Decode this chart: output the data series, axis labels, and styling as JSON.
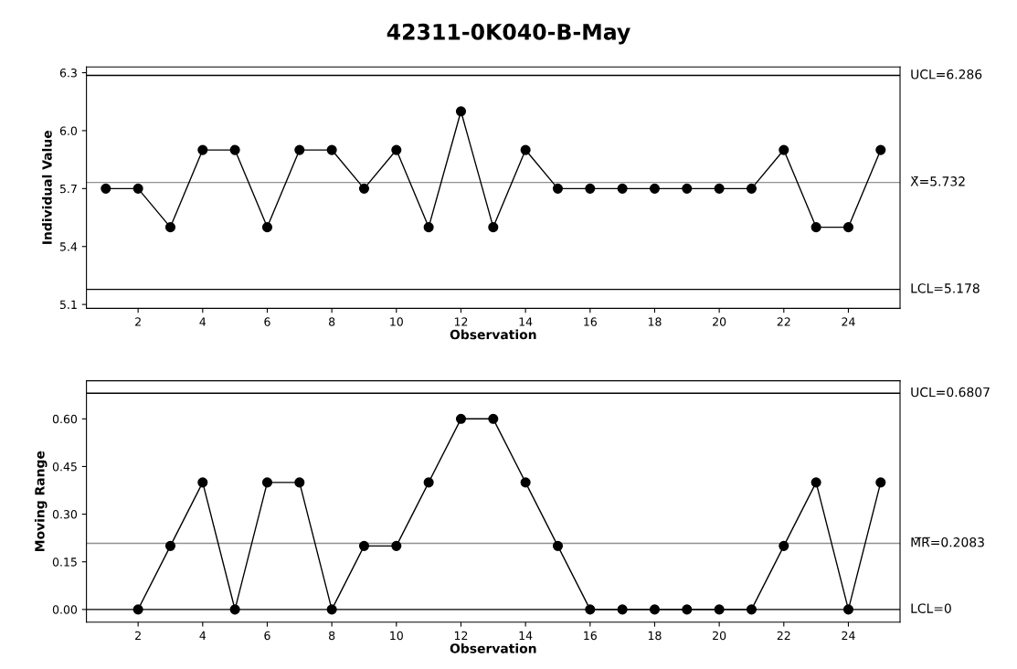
{
  "chart_data": [
    {
      "type": "line",
      "title": "42311-0K040-B-May",
      "xlabel": "Observation",
      "ylabel": "Individual Value",
      "x": [
        1,
        2,
        3,
        4,
        5,
        6,
        7,
        8,
        9,
        10,
        11,
        12,
        13,
        14,
        15,
        16,
        17,
        18,
        19,
        20,
        21,
        22,
        23,
        24,
        25
      ],
      "series": [
        {
          "color": "#000000",
          "values": [
            5.7,
            5.7,
            5.5,
            5.9,
            5.9,
            5.5,
            5.9,
            5.9,
            5.7,
            5.9,
            5.5,
            6.1,
            5.5,
            5.9,
            5.7,
            5.7,
            5.7,
            5.7,
            5.7,
            5.7,
            5.7,
            5.9,
            5.5,
            5.5,
            5.9
          ]
        }
      ],
      "xlim": [
        0.4,
        25.6
      ],
      "xticks": [
        2,
        4,
        6,
        8,
        10,
        12,
        14,
        16,
        18,
        20,
        22,
        24
      ],
      "ylim": [
        5.08,
        6.33
      ],
      "yticks": [
        5.1,
        5.4,
        5.7,
        {
          "value": 6.0,
          "label": "6.0"
        },
        6.3
      ],
      "ref_lines": [
        {
          "axis": "y",
          "value": 6.286,
          "label": "UCL=6.286",
          "color": "#000000"
        },
        {
          "axis": "y",
          "value": 5.732,
          "label": "X̄=5.732",
          "color": "#909090"
        },
        {
          "axis": "y",
          "value": 5.178,
          "label": "LCL=5.178",
          "color": "#000000"
        }
      ],
      "marker": "circle",
      "line_style": "solid",
      "grid": false,
      "legend": false
    },
    {
      "type": "line",
      "xlabel": "Observation",
      "ylabel": "Moving Range",
      "series": [
        {
          "color": "#000000",
          "x": [
            2,
            3,
            4,
            5,
            6,
            7,
            8,
            9,
            10,
            11,
            12,
            13,
            14,
            15,
            16,
            17,
            18,
            19,
            20,
            21,
            22,
            23,
            24,
            25
          ],
          "values": [
            0,
            0.2,
            0.4,
            0,
            0.4,
            0.4,
            0,
            0.2,
            0.2,
            0.4,
            0.6,
            0.6,
            0.4,
            0.2,
            0,
            0,
            0,
            0,
            0,
            0,
            0.2,
            0.4,
            0,
            0.4
          ]
        }
      ],
      "xlim": [
        0.4,
        25.6
      ],
      "xticks": [
        2,
        4,
        6,
        8,
        10,
        12,
        14,
        16,
        18,
        20,
        22,
        24
      ],
      "ylim": [
        -0.04,
        0.72
      ],
      "yticks": [
        {
          "value": 0,
          "label": "0.00"
        },
        0.15,
        {
          "value": 0.3,
          "label": "0.30"
        },
        0.45,
        {
          "value": 0.6,
          "label": "0.60"
        }
      ],
      "ref_lines": [
        {
          "axis": "y",
          "value": 0.6807,
          "label": "UCL=0.6807",
          "color": "#000000"
        },
        {
          "axis": "y",
          "value": 0.2083,
          "label": "M̅R̅=0.2083",
          "color": "#909090"
        },
        {
          "axis": "y",
          "value": 0,
          "label": "LCL=0",
          "color": "#000000"
        }
      ],
      "marker": "circle",
      "line_style": "solid",
      "grid": false,
      "legend": false
    }
  ]
}
